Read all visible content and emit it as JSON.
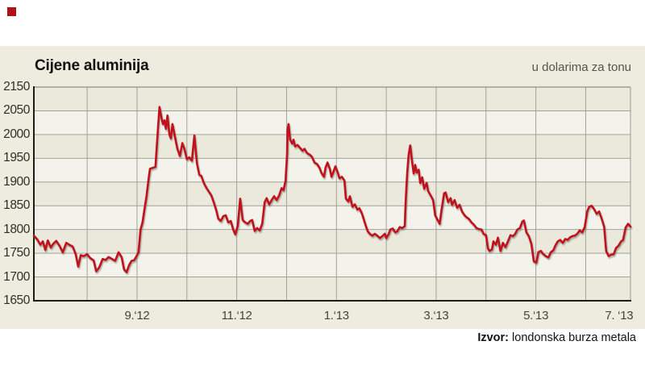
{
  "header": {
    "title": "Cijene aluminija",
    "unit_note": "u dolarima za tonu"
  },
  "footer": {
    "source_label": "Izvor:",
    "source_text": " londonska burza metala"
  },
  "colors": {
    "accent_red": "#c0111c",
    "corner_square": "#b01217",
    "panel_bg": "#edecdf",
    "band_dark": "#eae9dc",
    "band_light": "#f4f3eb",
    "grid": "#a3a29a",
    "border_dark": "#1c1c18",
    "border_top": "#7a7971",
    "border_right": "#9b9a91"
  },
  "chart_data": {
    "type": "line",
    "title": "Cijene aluminija",
    "subtitle": "u dolarima za tonu",
    "source": "Izvor: londonska burza metala",
    "legend": false,
    "grid": true,
    "y_axis": {
      "tick_labels": [
        "2150",
        "2050",
        "2000",
        "1950",
        "1900",
        "1850",
        "1800",
        "1750",
        "1700",
        "1650"
      ],
      "units": "USD per tonne"
    },
    "x_axis": {
      "range": "July 2012 - July 2013, monthly gridlines",
      "months_span": 12,
      "ticks": [
        {
          "m": 2,
          "label": "9.‘12"
        },
        {
          "m": 4,
          "label": "11.‘12"
        },
        {
          "m": 6,
          "label": "1.‘13"
        },
        {
          "m": 8,
          "label": "3.‘13"
        },
        {
          "m": 10,
          "label": "5.‘13"
        },
        {
          "m": 11.67,
          "label": "7. ‘13"
        }
      ]
    },
    "series": [
      {
        "name": "Cijena aluminija (USD/t)",
        "x_unit": "months_after_2012-07-01",
        "points": [
          [
            -0.07,
            1787
          ],
          [
            0.0,
            1779
          ],
          [
            0.06,
            1768
          ],
          [
            0.11,
            1775
          ],
          [
            0.16,
            1757
          ],
          [
            0.21,
            1777
          ],
          [
            0.27,
            1762
          ],
          [
            0.32,
            1770
          ],
          [
            0.38,
            1776
          ],
          [
            0.45,
            1765
          ],
          [
            0.51,
            1752
          ],
          [
            0.58,
            1772
          ],
          [
            0.64,
            1768
          ],
          [
            0.71,
            1764
          ],
          [
            0.77,
            1748
          ],
          [
            0.82,
            1722
          ],
          [
            0.87,
            1746
          ],
          [
            0.93,
            1744
          ],
          [
            1.0,
            1748
          ],
          [
            1.06,
            1740
          ],
          [
            1.13,
            1735
          ],
          [
            1.18,
            1712
          ],
          [
            1.24,
            1720
          ],
          [
            1.31,
            1738
          ],
          [
            1.37,
            1736
          ],
          [
            1.43,
            1742
          ],
          [
            1.5,
            1738
          ],
          [
            1.56,
            1734
          ],
          [
            1.63,
            1752
          ],
          [
            1.69,
            1742
          ],
          [
            1.74,
            1716
          ],
          [
            1.79,
            1710
          ],
          [
            1.84,
            1725
          ],
          [
            1.89,
            1734
          ],
          [
            1.94,
            1735
          ],
          [
            1.98,
            1742
          ],
          [
            2.03,
            1752
          ],
          [
            2.07,
            1800
          ],
          [
            2.11,
            1815
          ],
          [
            2.15,
            1843
          ],
          [
            2.19,
            1870
          ],
          [
            2.23,
            1905
          ],
          [
            2.26,
            1928
          ],
          [
            2.32,
            1930
          ],
          [
            2.37,
            1932
          ],
          [
            2.42,
            2012
          ],
          [
            2.45,
            2058
          ],
          [
            2.49,
            2035
          ],
          [
            2.52,
            2022
          ],
          [
            2.55,
            2030
          ],
          [
            2.58,
            2012
          ],
          [
            2.61,
            2040
          ],
          [
            2.65,
            2000
          ],
          [
            2.68,
            1992
          ],
          [
            2.71,
            2022
          ],
          [
            2.76,
            1995
          ],
          [
            2.81,
            1970
          ],
          [
            2.86,
            1955
          ],
          [
            2.91,
            1982
          ],
          [
            2.95,
            1970
          ],
          [
            3.0,
            1948
          ],
          [
            3.05,
            1952
          ],
          [
            3.1,
            1945
          ],
          [
            3.15,
            1998
          ],
          [
            3.2,
            1940
          ],
          [
            3.25,
            1915
          ],
          [
            3.29,
            1913
          ],
          [
            3.34,
            1898
          ],
          [
            3.39,
            1888
          ],
          [
            3.44,
            1880
          ],
          [
            3.49,
            1872
          ],
          [
            3.54,
            1857
          ],
          [
            3.59,
            1840
          ],
          [
            3.63,
            1823
          ],
          [
            3.68,
            1818
          ],
          [
            3.73,
            1828
          ],
          [
            3.78,
            1830
          ],
          [
            3.83,
            1815
          ],
          [
            3.88,
            1818
          ],
          [
            3.93,
            1800
          ],
          [
            3.97,
            1790
          ],
          [
            4.02,
            1808
          ],
          [
            4.07,
            1865
          ],
          [
            4.12,
            1820
          ],
          [
            4.17,
            1815
          ],
          [
            4.22,
            1812
          ],
          [
            4.27,
            1818
          ],
          [
            4.31,
            1820
          ],
          [
            4.36,
            1797
          ],
          [
            4.41,
            1803
          ],
          [
            4.46,
            1798
          ],
          [
            4.51,
            1812
          ],
          [
            4.56,
            1857
          ],
          [
            4.6,
            1866
          ],
          [
            4.65,
            1853
          ],
          [
            4.7,
            1862
          ],
          [
            4.75,
            1870
          ],
          [
            4.8,
            1862
          ],
          [
            4.85,
            1872
          ],
          [
            4.9,
            1887
          ],
          [
            4.94,
            1883
          ],
          [
            4.98,
            1903
          ],
          [
            5.01,
            1960
          ],
          [
            5.02,
            2010
          ],
          [
            5.04,
            2022
          ],
          [
            5.07,
            1990
          ],
          [
            5.11,
            1981
          ],
          [
            5.14,
            1989
          ],
          [
            5.17,
            1975
          ],
          [
            5.22,
            1978
          ],
          [
            5.27,
            1972
          ],
          [
            5.32,
            1966
          ],
          [
            5.36,
            1970
          ],
          [
            5.41,
            1961
          ],
          [
            5.46,
            1958
          ],
          [
            5.51,
            1953
          ],
          [
            5.56,
            1941
          ],
          [
            5.61,
            1938
          ],
          [
            5.66,
            1930
          ],
          [
            5.7,
            1919
          ],
          [
            5.75,
            1911
          ],
          [
            5.78,
            1930
          ],
          [
            5.82,
            1941
          ],
          [
            5.87,
            1927
          ],
          [
            5.9,
            1911
          ],
          [
            5.93,
            1919
          ],
          [
            5.98,
            1933
          ],
          [
            6.03,
            1919
          ],
          [
            6.06,
            1908
          ],
          [
            6.11,
            1911
          ],
          [
            6.16,
            1903
          ],
          [
            6.19,
            1865
          ],
          [
            6.24,
            1859
          ],
          [
            6.27,
            1870
          ],
          [
            6.32,
            1848
          ],
          [
            6.37,
            1853
          ],
          [
            6.42,
            1842
          ],
          [
            6.46,
            1845
          ],
          [
            6.51,
            1834
          ],
          [
            6.54,
            1824
          ],
          [
            6.59,
            1807
          ],
          [
            6.63,
            1796
          ],
          [
            6.67,
            1791
          ],
          [
            6.72,
            1787
          ],
          [
            6.77,
            1791
          ],
          [
            6.82,
            1787
          ],
          [
            6.87,
            1782
          ],
          [
            6.92,
            1786
          ],
          [
            6.97,
            1791
          ],
          [
            7.0,
            1782
          ],
          [
            7.05,
            1791
          ],
          [
            7.08,
            1800
          ],
          [
            7.13,
            1802
          ],
          [
            7.18,
            1794
          ],
          [
            7.22,
            1796
          ],
          [
            7.27,
            1805
          ],
          [
            7.32,
            1803
          ],
          [
            7.37,
            1807
          ],
          [
            7.39,
            1860
          ],
          [
            7.42,
            1920
          ],
          [
            7.45,
            1958
          ],
          [
            7.48,
            1977
          ],
          [
            7.52,
            1940
          ],
          [
            7.55,
            1918
          ],
          [
            7.58,
            1936
          ],
          [
            7.61,
            1920
          ],
          [
            7.65,
            1926
          ],
          [
            7.68,
            1898
          ],
          [
            7.72,
            1910
          ],
          [
            7.76,
            1886
          ],
          [
            7.81,
            1898
          ],
          [
            7.84,
            1881
          ],
          [
            7.89,
            1872
          ],
          [
            7.94,
            1862
          ],
          [
            7.98,
            1830
          ],
          [
            8.03,
            1820
          ],
          [
            8.07,
            1812
          ],
          [
            8.11,
            1842
          ],
          [
            8.16,
            1876
          ],
          [
            8.19,
            1878
          ],
          [
            8.24,
            1858
          ],
          [
            8.29,
            1866
          ],
          [
            8.32,
            1852
          ],
          [
            8.37,
            1862
          ],
          [
            8.42,
            1846
          ],
          [
            8.47,
            1852
          ],
          [
            8.52,
            1838
          ],
          [
            8.57,
            1830
          ],
          [
            8.61,
            1826
          ],
          [
            8.66,
            1822
          ],
          [
            8.71,
            1815
          ],
          [
            8.76,
            1810
          ],
          [
            8.81,
            1803
          ],
          [
            8.86,
            1801
          ],
          [
            8.91,
            1800
          ],
          [
            8.95,
            1791
          ],
          [
            9.0,
            1788
          ],
          [
            9.04,
            1760
          ],
          [
            9.07,
            1755
          ],
          [
            9.12,
            1758
          ],
          [
            9.15,
            1775
          ],
          [
            9.2,
            1768
          ],
          [
            9.24,
            1783
          ],
          [
            9.29,
            1755
          ],
          [
            9.34,
            1772
          ],
          [
            9.39,
            1763
          ],
          [
            9.44,
            1775
          ],
          [
            9.49,
            1788
          ],
          [
            9.54,
            1786
          ],
          [
            9.58,
            1790
          ],
          [
            9.63,
            1800
          ],
          [
            9.68,
            1803
          ],
          [
            9.73,
            1817
          ],
          [
            9.76,
            1819
          ],
          [
            9.81,
            1794
          ],
          [
            9.86,
            1786
          ],
          [
            9.91,
            1770
          ],
          [
            9.96,
            1733
          ],
          [
            10.01,
            1730
          ],
          [
            10.05,
            1752
          ],
          [
            10.1,
            1755
          ],
          [
            10.15,
            1748
          ],
          [
            10.2,
            1744
          ],
          [
            10.25,
            1741
          ],
          [
            10.3,
            1752
          ],
          [
            10.35,
            1756
          ],
          [
            10.39,
            1766
          ],
          [
            10.44,
            1775
          ],
          [
            10.49,
            1778
          ],
          [
            10.54,
            1772
          ],
          [
            10.59,
            1780
          ],
          [
            10.64,
            1778
          ],
          [
            10.68,
            1783
          ],
          [
            10.73,
            1786
          ],
          [
            10.78,
            1787
          ],
          [
            10.83,
            1791
          ],
          [
            10.88,
            1798
          ],
          [
            10.93,
            1794
          ],
          [
            10.98,
            1805
          ],
          [
            11.03,
            1838
          ],
          [
            11.07,
            1848
          ],
          [
            11.12,
            1850
          ],
          [
            11.17,
            1843
          ],
          [
            11.22,
            1833
          ],
          [
            11.27,
            1838
          ],
          [
            11.32,
            1823
          ],
          [
            11.37,
            1806
          ],
          [
            11.41,
            1755
          ],
          [
            11.46,
            1744
          ],
          [
            11.51,
            1747
          ],
          [
            11.56,
            1748
          ],
          [
            11.61,
            1761
          ],
          [
            11.66,
            1766
          ],
          [
            11.71,
            1775
          ],
          [
            11.75,
            1778
          ],
          [
            11.8,
            1804
          ],
          [
            11.85,
            1812
          ],
          [
            11.9,
            1806
          ]
        ]
      }
    ]
  }
}
